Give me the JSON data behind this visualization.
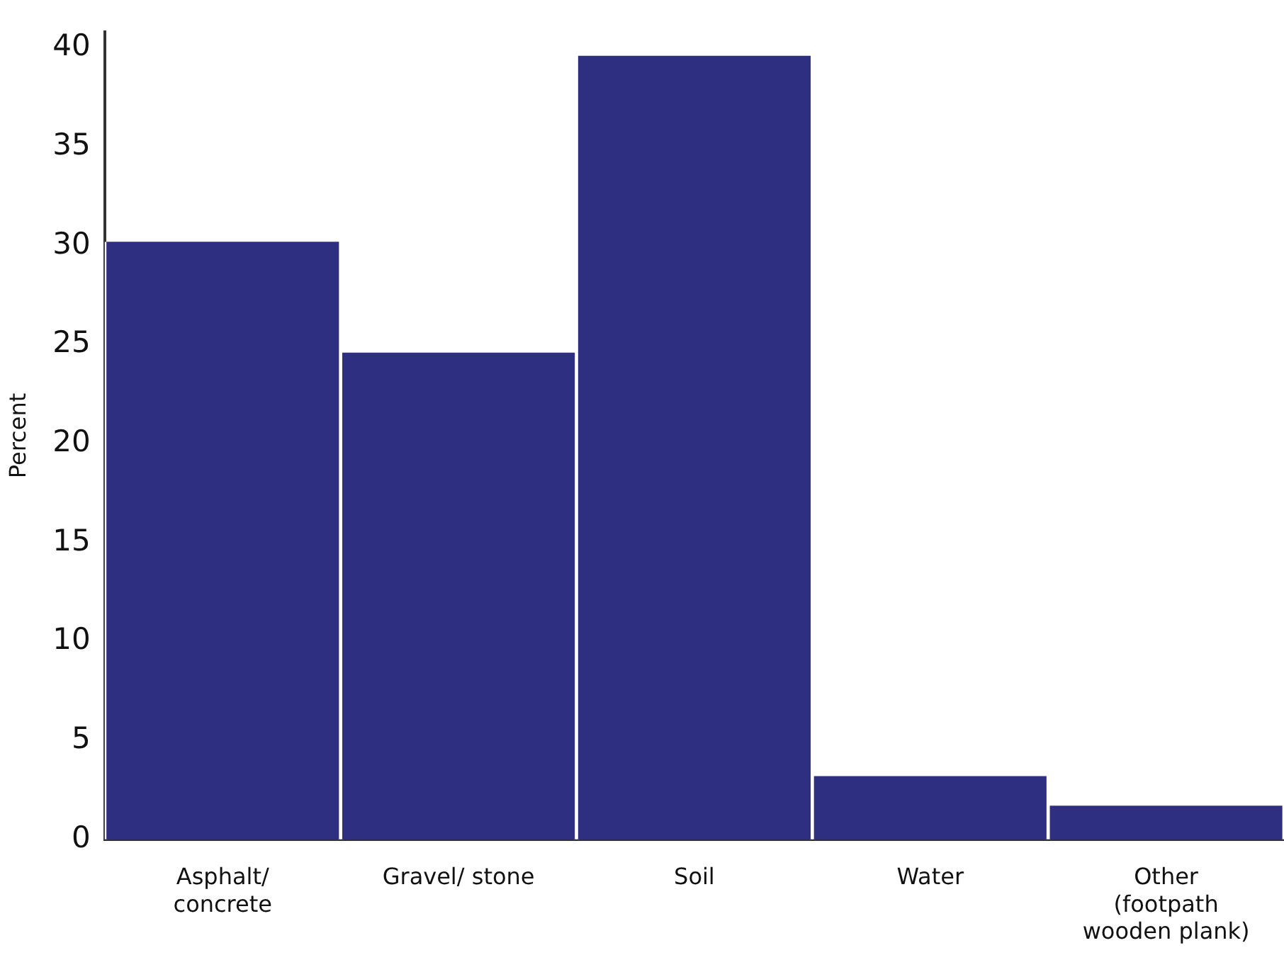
{
  "chart_data": {
    "type": "bar",
    "ylabel": "Percent",
    "categories": [
      "Asphalt/ concrete",
      "Gravel/ stone",
      "Soil",
      "Water",
      "Other (footpath wooden plank)"
    ],
    "values": [
      30.2,
      24.6,
      39.6,
      3.2,
      1.7
    ],
    "color": "#2e2f80",
    "ylim": [
      0,
      40.8
    ],
    "yticks": [
      0,
      5,
      10,
      15,
      20,
      25,
      30,
      35,
      40
    ],
    "grid": false,
    "legend": false
  }
}
